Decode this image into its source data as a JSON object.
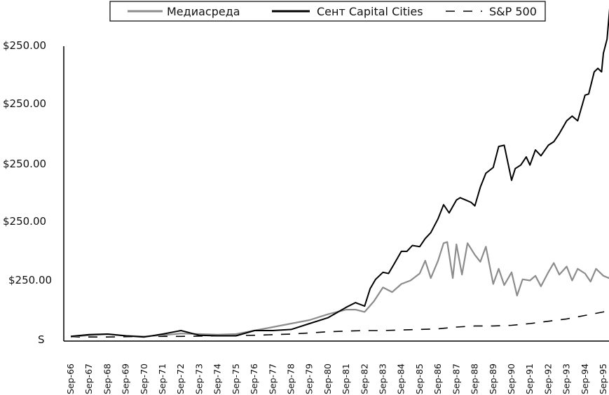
{
  "chart_data": {
    "type": "line",
    "title": "",
    "xlabel": "",
    "ylabel": "",
    "legend_position": "top-center",
    "grid": false,
    "y_tick_labels": [
      "$250.00",
      "$250.00",
      "$250.00",
      "$250.00",
      "$250.00",
      "S"
    ],
    "ylim": [
      0,
      500
    ],
    "categories": [
      "Sep-66",
      "Sep-67",
      "Sep-68",
      "Sep-69",
      "Sep-70",
      "Sep-71",
      "Sep-72",
      "Sep-73",
      "Sep-74",
      "Sep-75",
      "Sep-76",
      "Sep-77",
      "Sep-78",
      "Sep-79",
      "Sep-80",
      "Sep-81",
      "Sep-82",
      "Sep-83",
      "Sep-84",
      "Sep-85",
      "Sep-86",
      "Sep-87",
      "Sep-88",
      "Sep-89",
      "Sep-90",
      "Sep-91",
      "Sep-92",
      "Sep-93",
      "Sep-94",
      "Sep-95"
    ],
    "series": [
      {
        "name": "Медиасреда",
        "color": "#8c8c8c",
        "style": "solid",
        "x": [
          0,
          1,
          2,
          3,
          4,
          5,
          6,
          7,
          8,
          9,
          10,
          11,
          12,
          13,
          14,
          15,
          15.5,
          16,
          16.5,
          17,
          17.5,
          18,
          18.5,
          19,
          19.3,
          19.6,
          20,
          20.3,
          20.5,
          20.8,
          21,
          21.3,
          21.6,
          22,
          22.3,
          22.6,
          23,
          23.3,
          23.6,
          24,
          24.3,
          24.6,
          25,
          25.3,
          25.6,
          26,
          26.3,
          26.6,
          27,
          27.3,
          27.6,
          28,
          28.3,
          28.6,
          29,
          29.3,
          29.6,
          29.8
        ],
        "values": [
          1,
          4,
          6,
          3,
          2,
          4,
          7,
          6,
          5,
          6,
          12,
          18,
          24,
          30,
          40,
          48,
          48,
          44,
          62,
          86,
          78,
          92,
          98,
          110,
          132,
          102,
          132,
          162,
          164,
          102,
          160,
          108,
          162,
          142,
          130,
          156,
          92,
          118,
          90,
          112,
          72,
          100,
          98,
          106,
          88,
          112,
          128,
          108,
          122,
          98,
          118,
          110,
          96,
          118,
          106,
          102,
          118,
          132
        ],
        "x_cont": [
          15,
          15.5,
          16,
          16.5,
          17,
          17.5,
          18,
          18.5,
          19,
          19.3,
          19.6,
          20,
          20.3,
          20.5,
          20.8,
          21,
          21.3,
          21.6,
          22,
          22.3,
          22.6,
          23,
          23.3,
          23.6,
          24,
          24.3,
          24.6,
          25,
          25.3,
          25.6,
          26,
          26.3,
          26.6,
          27,
          27.3,
          27.6,
          28,
          28.3,
          28.6,
          29,
          29.3,
          29.6,
          29.8
        ],
        "values_note": ""
      }
    ]
  },
  "legend": {
    "items": [
      {
        "label": "Медиасреда",
        "color": "#8c8c8c",
        "style": "solid"
      },
      {
        "label": "Сент Capital Cities",
        "color": "#000000",
        "style": "solid"
      },
      {
        "label": "S&P 500",
        "color": "#000000",
        "style": "dashed"
      }
    ]
  }
}
